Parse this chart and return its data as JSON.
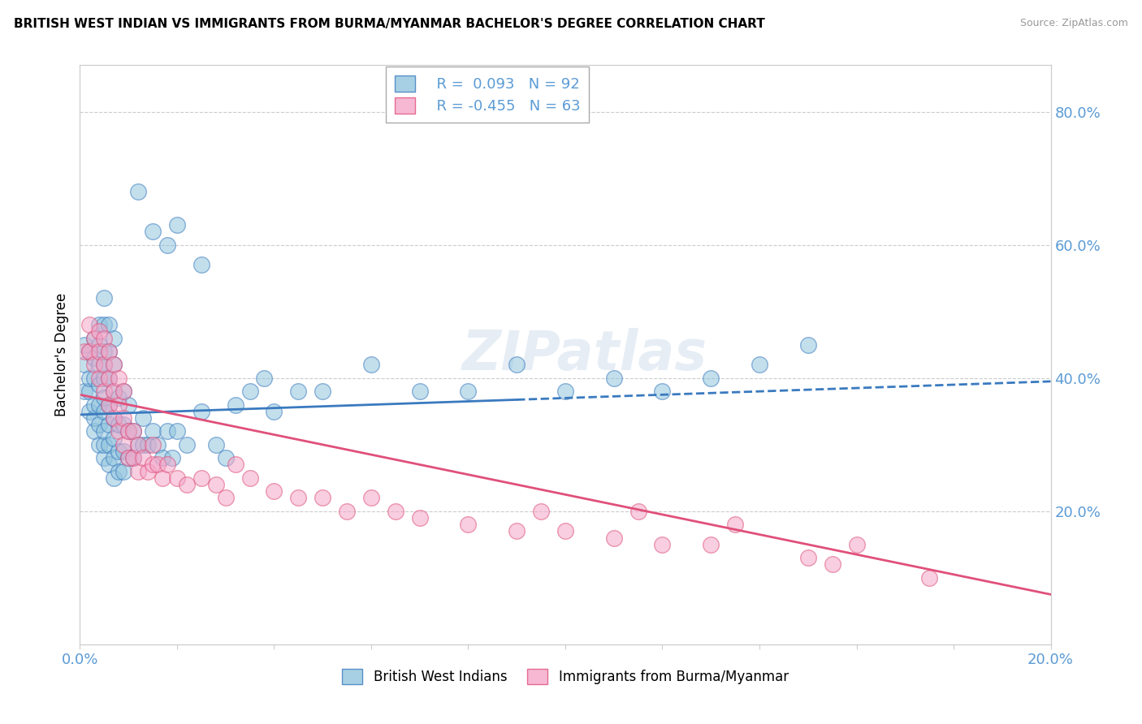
{
  "title": "BRITISH WEST INDIAN VS IMMIGRANTS FROM BURMA/MYANMAR BACHELOR'S DEGREE CORRELATION CHART",
  "source": "Source: ZipAtlas.com",
  "ylabel": "Bachelor's Degree",
  "watermark": "ZIPatlas",
  "r1": 0.093,
  "n1": 92,
  "r2": -0.455,
  "n2": 63,
  "color1": "#92c5de",
  "color2": "#f4a6c8",
  "line_color1": "#3a7abf",
  "line_color2": "#e0507a",
  "legend_label1": "British West Indians",
  "legend_label2": "Immigrants from Burma/Myanmar",
  "xlim": [
    0.0,
    0.2
  ],
  "ylim": [
    0.0,
    0.87
  ],
  "background_color": "#ffffff",
  "grid_color": "#cccccc",
  "blue_x": [
    0.001,
    0.001,
    0.001,
    0.002,
    0.002,
    0.002,
    0.002,
    0.003,
    0.003,
    0.003,
    0.003,
    0.003,
    0.003,
    0.004,
    0.004,
    0.004,
    0.004,
    0.004,
    0.004,
    0.004,
    0.005,
    0.005,
    0.005,
    0.005,
    0.005,
    0.005,
    0.005,
    0.005,
    0.005,
    0.005,
    0.006,
    0.006,
    0.006,
    0.006,
    0.006,
    0.006,
    0.006,
    0.007,
    0.007,
    0.007,
    0.007,
    0.007,
    0.007,
    0.007,
    0.008,
    0.008,
    0.008,
    0.008,
    0.009,
    0.009,
    0.009,
    0.009,
    0.01,
    0.01,
    0.01,
    0.011,
    0.011,
    0.012,
    0.013,
    0.013,
    0.014,
    0.015,
    0.016,
    0.017,
    0.018,
    0.019,
    0.02,
    0.022,
    0.025,
    0.028,
    0.03,
    0.032,
    0.035,
    0.038,
    0.04,
    0.045,
    0.05,
    0.06,
    0.07,
    0.08,
    0.09,
    0.1,
    0.11,
    0.12,
    0.13,
    0.14,
    0.15,
    0.012,
    0.015,
    0.018,
    0.02,
    0.025
  ],
  "blue_y": [
    0.38,
    0.42,
    0.45,
    0.35,
    0.38,
    0.4,
    0.44,
    0.32,
    0.34,
    0.36,
    0.4,
    0.43,
    0.46,
    0.3,
    0.33,
    0.36,
    0.39,
    0.42,
    0.45,
    0.48,
    0.28,
    0.3,
    0.32,
    0.35,
    0.37,
    0.4,
    0.42,
    0.44,
    0.48,
    0.52,
    0.27,
    0.3,
    0.33,
    0.36,
    0.4,
    0.44,
    0.48,
    0.25,
    0.28,
    0.31,
    0.34,
    0.38,
    0.42,
    0.46,
    0.26,
    0.29,
    0.33,
    0.37,
    0.26,
    0.29,
    0.33,
    0.38,
    0.28,
    0.32,
    0.36,
    0.28,
    0.32,
    0.3,
    0.3,
    0.34,
    0.3,
    0.32,
    0.3,
    0.28,
    0.32,
    0.28,
    0.32,
    0.3,
    0.35,
    0.3,
    0.28,
    0.36,
    0.38,
    0.4,
    0.35,
    0.38,
    0.38,
    0.42,
    0.38,
    0.38,
    0.42,
    0.38,
    0.4,
    0.38,
    0.4,
    0.42,
    0.45,
    0.68,
    0.62,
    0.6,
    0.63,
    0.57
  ],
  "pink_x": [
    0.001,
    0.002,
    0.002,
    0.003,
    0.003,
    0.004,
    0.004,
    0.004,
    0.005,
    0.005,
    0.005,
    0.006,
    0.006,
    0.006,
    0.007,
    0.007,
    0.007,
    0.008,
    0.008,
    0.008,
    0.009,
    0.009,
    0.009,
    0.01,
    0.01,
    0.011,
    0.011,
    0.012,
    0.012,
    0.013,
    0.014,
    0.015,
    0.015,
    0.016,
    0.017,
    0.018,
    0.02,
    0.022,
    0.025,
    0.028,
    0.03,
    0.032,
    0.035,
    0.04,
    0.045,
    0.05,
    0.055,
    0.06,
    0.065,
    0.07,
    0.08,
    0.09,
    0.095,
    0.1,
    0.11,
    0.115,
    0.12,
    0.13,
    0.135,
    0.15,
    0.155,
    0.16,
    0.175
  ],
  "pink_y": [
    0.44,
    0.44,
    0.48,
    0.42,
    0.46,
    0.4,
    0.44,
    0.47,
    0.38,
    0.42,
    0.46,
    0.36,
    0.4,
    0.44,
    0.34,
    0.38,
    0.42,
    0.32,
    0.36,
    0.4,
    0.3,
    0.34,
    0.38,
    0.28,
    0.32,
    0.28,
    0.32,
    0.26,
    0.3,
    0.28,
    0.26,
    0.27,
    0.3,
    0.27,
    0.25,
    0.27,
    0.25,
    0.24,
    0.25,
    0.24,
    0.22,
    0.27,
    0.25,
    0.23,
    0.22,
    0.22,
    0.2,
    0.22,
    0.2,
    0.19,
    0.18,
    0.17,
    0.2,
    0.17,
    0.16,
    0.2,
    0.15,
    0.15,
    0.18,
    0.13,
    0.12,
    0.15,
    0.1
  ],
  "blue_line_x0": 0.0,
  "blue_line_x1": 0.2,
  "blue_line_y0": 0.345,
  "blue_line_y1": 0.395,
  "pink_line_x0": 0.0,
  "pink_line_x1": 0.2,
  "pink_line_y0": 0.375,
  "pink_line_y1": 0.075
}
